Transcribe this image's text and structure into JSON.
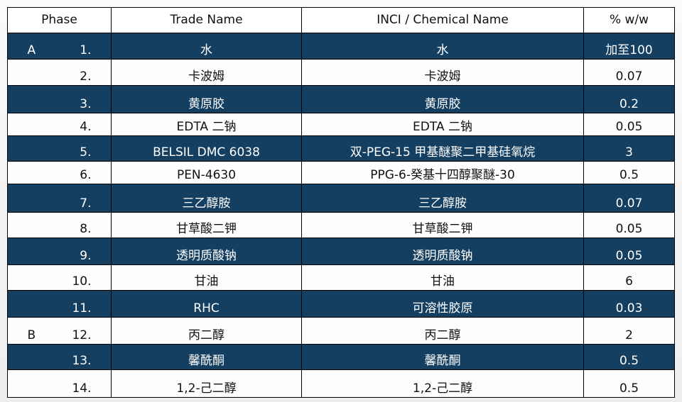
{
  "header": [
    "Phase",
    "Trade Name",
    "INCI / Chemical Name",
    "% w/w"
  ],
  "rows": [
    {
      "phase": "A",
      "no": "1.",
      "trade": "水",
      "inci": "水",
      "pct": "加至100",
      "style": "dark"
    },
    {
      "phase": "",
      "no": "2.",
      "trade": "卡波姆",
      "inci": "卡波姆",
      "pct": "0.07",
      "style": "light"
    },
    {
      "phase": "",
      "no": "3.",
      "trade": "黄原胶",
      "inci": "黄原胶",
      "pct": "0.2",
      "style": "dark"
    },
    {
      "phase": "",
      "no": "4.",
      "trade": "EDTA 二钠",
      "inci": "EDTA 二钠",
      "pct": "0.05",
      "style": "light"
    },
    {
      "phase": "",
      "no": "5.",
      "trade": "BELSIL DMC 6038",
      "inci": "双-PEG-15 甲基醚聚二甲基硅氧烷",
      "pct": "3",
      "style": "dark"
    },
    {
      "phase": "",
      "no": "6.",
      "trade": "PEN-4630",
      "inci": "PPG-6-癸基十四醇聚醚-30",
      "pct": "0.5",
      "style": "light"
    },
    {
      "phase": "",
      "no": "7.",
      "trade": "三乙醇胺",
      "inci": "三乙醇胺",
      "pct": "0.07",
      "style": "dark"
    },
    {
      "phase": "",
      "no": "8.",
      "trade": "甘草酸二钾",
      "inci": "甘草酸二钾",
      "pct": "0.05",
      "style": "light"
    },
    {
      "phase": "",
      "no": "9.",
      "trade": "透明质酸钠",
      "inci": "透明质酸钠",
      "pct": "0.05",
      "style": "dark"
    },
    {
      "phase": "",
      "no": "10.",
      "trade": "甘油",
      "inci": "甘油",
      "pct": "6",
      "style": "light"
    },
    {
      "phase": "",
      "no": "11.",
      "trade": "RHC",
      "inci": "可溶性胶原",
      "pct": "0.03",
      "style": "dark"
    },
    {
      "phase": "B",
      "no": "12.",
      "trade": "丙二醇",
      "inci": "丙二醇",
      "pct": "2",
      "style": "light"
    },
    {
      "phase": "",
      "no": "13.",
      "trade": "馨酰酮",
      "inci": "馨酰酮",
      "pct": "0.5",
      "style": "dark"
    },
    {
      "phase": "",
      "no": "14.",
      "trade": "1,2-己二醇",
      "inci": "1,2-己二醇",
      "pct": "0.5",
      "style": "light"
    }
  ],
  "colors": {
    "dark_row": "#143f61",
    "light_row": "#ffffff"
  }
}
